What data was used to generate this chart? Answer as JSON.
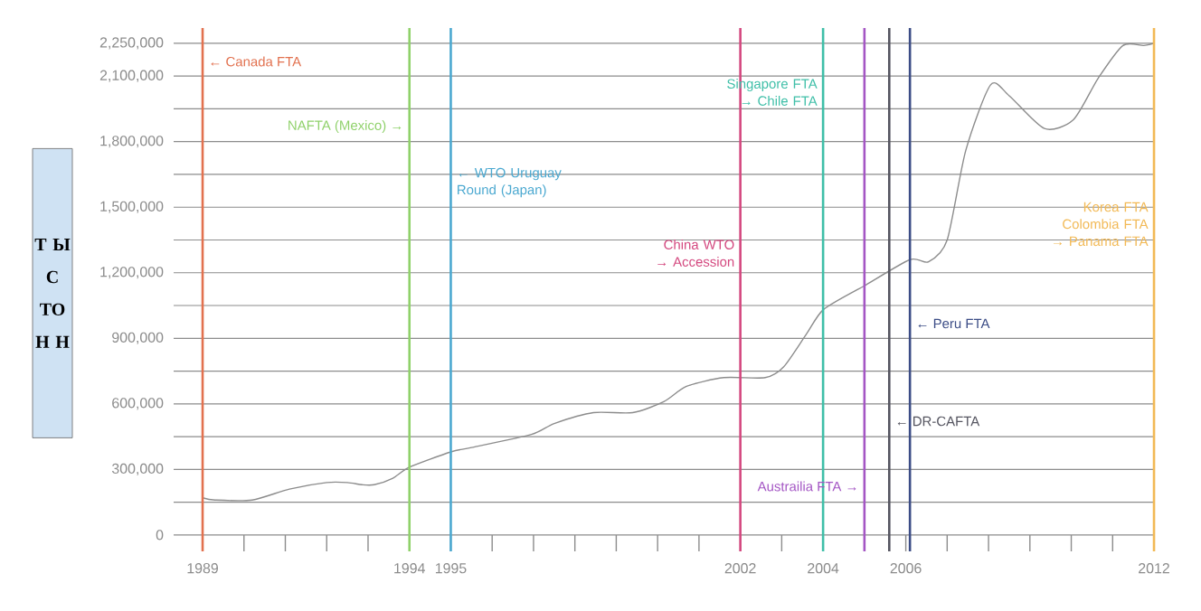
{
  "chart_data": {
    "type": "line",
    "ylabel": "Т Ы С ТО Н Н",
    "xlim": [
      1988.3,
      2012
    ],
    "ylim": [
      -75000,
      2320000
    ],
    "xticks": [
      1989,
      {
        "value": 1990,
        "label": null
      },
      {
        "value": 1991,
        "label": null
      },
      {
        "value": 1992,
        "label": null
      },
      {
        "value": 1993,
        "label": null
      },
      1994,
      1995,
      {
        "value": 1996,
        "label": null
      },
      {
        "value": 1997,
        "label": null
      },
      {
        "value": 1998,
        "label": null
      },
      {
        "value": 1999,
        "label": null
      },
      {
        "value": 2000,
        "label": null
      },
      {
        "value": 2001,
        "label": null
      },
      2002,
      {
        "value": 2003,
        "label": null
      },
      2004,
      {
        "value": 2005,
        "label": null
      },
      2006,
      {
        "value": 2007,
        "label": null
      },
      {
        "value": 2008,
        "label": null
      },
      {
        "value": 2009,
        "label": null
      },
      {
        "value": 2010,
        "label": null
      },
      {
        "value": 2011,
        "label": null
      },
      2012
    ],
    "yticks": [
      0,
      {
        "value": 150000,
        "label": null
      },
      {
        "value": 300000,
        "label": "300,000"
      },
      {
        "value": 450000,
        "label": null
      },
      {
        "value": 600000,
        "label": "600,000"
      },
      {
        "value": 750000,
        "label": null
      },
      {
        "value": 900000,
        "label": "900,000"
      },
      {
        "value": 1050000,
        "label": null
      },
      {
        "value": 1200000,
        "label": "1,200,000"
      },
      {
        "value": 1350000,
        "label": null
      },
      {
        "value": 1500000,
        "label": "1,500,000"
      },
      {
        "value": 1650000,
        "label": null
      },
      {
        "value": 1800000,
        "label": "1,800,000"
      },
      {
        "value": 1950000,
        "label": null
      },
      {
        "value": 2100000,
        "label": "2,100,000"
      },
      {
        "value": 2250000,
        "label": "2,250,000"
      }
    ],
    "grid": "y",
    "series": [
      {
        "color": "#8c8c8c",
        "x": [
          1989,
          1989.3,
          1990.2,
          1991.1,
          1992.0,
          1992.5,
          1992.85,
          1993.15,
          1993.6,
          1994.0,
          1995.0,
          1995.5,
          1996.95,
          1997.5,
          1998.45,
          1999.4,
          2000.15,
          2000.7,
          2001.6,
          2002.6,
          2003.05,
          2003.6,
          2004.0,
          2004.8,
          2005.0,
          2006.1,
          2006.55,
          2007.0,
          2007.45,
          2008.05,
          2008.5,
          2009.35,
          2010.05,
          2010.65,
          2011.25,
          2011.75,
          2012
        ],
        "values": [
          170000,
          160000,
          160000,
          210000,
          240000,
          240000,
          230000,
          230000,
          260000,
          310000,
          380000,
          400000,
          460000,
          510000,
          560000,
          560000,
          610000,
          680000,
          720000,
          720000,
          770000,
          920000,
          1030000,
          1120000,
          1140000,
          1260000,
          1250000,
          1350000,
          1760000,
          2060000,
          2010000,
          1860000,
          1900000,
          2090000,
          2240000,
          2240000,
          2250000
        ]
      }
    ],
    "ref_lines": [
      {
        "axis": "x",
        "value": 1989,
        "label": "← Canada FTA",
        "color": "#e2714f"
      },
      {
        "axis": "x",
        "value": 1994,
        "label": "NAFTA (Mexico) →",
        "color": "#8fd16a"
      },
      {
        "axis": "x",
        "value": 1995,
        "label": "← WTO Uruguay Round (Japan)",
        "color": "#4aa8d0"
      },
      {
        "axis": "x",
        "value": 2002,
        "label": "China WTO → Accession",
        "color": "#d4487f"
      },
      {
        "axis": "x",
        "value": 2004,
        "label": "Singapore FTA → Chile FTA",
        "color": "#3fbfa8"
      },
      {
        "axis": "x",
        "value": 2005,
        "label": "Austrailia FTA →",
        "color": "#a456c4"
      },
      {
        "axis": "x",
        "value": 2005.6,
        "label": "← DR-CAFTA",
        "color": "#555560"
      },
      {
        "axis": "x",
        "value": 2006.1,
        "label": "← Peru FTA",
        "color": "#3c4d86"
      },
      {
        "axis": "x",
        "value": 2012,
        "label": "Korea FTA Colombia FTA → Panama FTA",
        "color": "#f2b955"
      }
    ]
  }
}
